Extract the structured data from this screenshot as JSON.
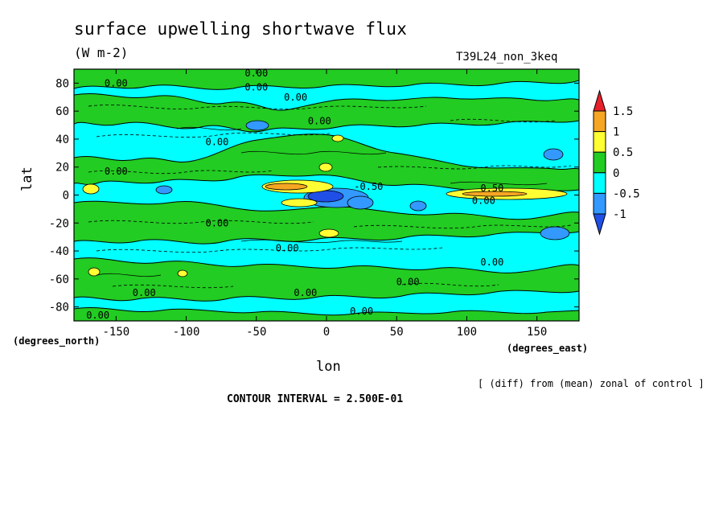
{
  "chart_data": {
    "type": "heatmap",
    "title": "surface upwelling shortwave flux",
    "units": "(W m-2)",
    "dataset": "T39L24_non_3keq",
    "xlabel": "lon",
    "xlabel_units": "(degrees_east)",
    "ylabel": "lat",
    "ylabel_units": "(degrees_north)",
    "note": "[ (diff) from (mean) zonal of control ]",
    "contour_interval": "CONTOUR INTERVAL = 2.500E-01",
    "xlim": [
      -180,
      180
    ],
    "ylim": [
      -90,
      90
    ],
    "x_ticks": [
      -150,
      -100,
      -50,
      0,
      50,
      100,
      150
    ],
    "x_tick_labels": [
      "-150",
      "-100",
      "-50",
      "0",
      "50",
      "100",
      "150"
    ],
    "y_ticks": [
      80,
      60,
      40,
      20,
      0,
      -20,
      -40,
      -60,
      -80
    ],
    "y_tick_labels": [
      "80",
      "60",
      "40",
      "20",
      "0",
      "-20",
      "-40",
      "-60",
      "-80"
    ],
    "colorbar": {
      "levels": [
        "1.5",
        "1",
        "0.5",
        "0",
        "-0.5",
        "-1"
      ],
      "colors": [
        "#e8202a",
        "#f5a623",
        "#ffff33",
        "#22cc22",
        "#00ffff",
        "#3399ff",
        "#1f4fe6"
      ]
    },
    "contour_labels": [
      {
        "text": "0.00",
        "lon": -150,
        "lat": 80
      },
      {
        "text": "0.00",
        "lon": -50,
        "lat": 87
      },
      {
        "text": "0.00",
        "lon": -50,
        "lat": 77
      },
      {
        "text": "0.00",
        "lon": -22,
        "lat": 70
      },
      {
        "text": "0.00",
        "lon": -5,
        "lat": 53
      },
      {
        "text": "0.00",
        "lon": -78,
        "lat": 38
      },
      {
        "text": "0.00",
        "lon": -150,
        "lat": 17
      },
      {
        "text": "-0.50",
        "lon": 30,
        "lat": 6
      },
      {
        "text": "0.50",
        "lon": 118,
        "lat": 5
      },
      {
        "text": "0.00",
        "lon": 112,
        "lat": -4
      },
      {
        "text": "0.00",
        "lon": -78,
        "lat": -20
      },
      {
        "text": "0.00",
        "lon": -28,
        "lat": -38
      },
      {
        "text": "0.00",
        "lon": 118,
        "lat": -48
      },
      {
        "text": "0.00",
        "lon": 58,
        "lat": -62
      },
      {
        "text": "0.00",
        "lon": -130,
        "lat": -70
      },
      {
        "text": "0.00",
        "lon": -15,
        "lat": -70
      },
      {
        "text": "0.00",
        "lon": 25,
        "lat": -83
      },
      {
        "text": "0.00",
        "lon": -163,
        "lat": -86
      }
    ]
  }
}
